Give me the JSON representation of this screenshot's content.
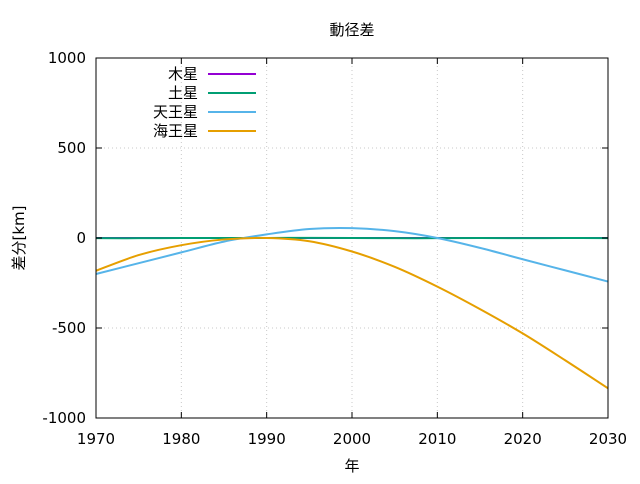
{
  "chart_data": {
    "type": "line",
    "title": "動径差",
    "xlabel": "年",
    "ylabel": "差分[km]",
    "xlim": [
      1970,
      2030
    ],
    "ylim": [
      -1000,
      1000
    ],
    "x_ticks": [
      "1970",
      "1980",
      "1990",
      "2000",
      "2010",
      "2020",
      "2030"
    ],
    "y_ticks": [
      "1000",
      "500",
      "0",
      "-500",
      "-1000"
    ],
    "grid": true,
    "legend_position": "top-left",
    "x": [
      1970,
      1975,
      1980,
      1985,
      1990,
      1995,
      2000,
      2005,
      2010,
      2015,
      2020,
      2025,
      2030
    ],
    "series": [
      {
        "name": "木星",
        "color": "#9400d3",
        "values": [
          0,
          0,
          0,
          0,
          0,
          0,
          0,
          0,
          0,
          0,
          0,
          0,
          0
        ]
      },
      {
        "name": "土星",
        "color": "#009e73",
        "values": [
          -1,
          -1,
          0,
          0,
          0,
          1,
          0,
          -1,
          -1,
          0,
          -1,
          0,
          -1
        ]
      },
      {
        "name": "天王星",
        "color": "#56b4e9",
        "values": [
          -200,
          -140,
          -80,
          -20,
          20,
          50,
          55,
          38,
          0,
          -55,
          -118,
          -180,
          -242
        ]
      },
      {
        "name": "海王星",
        "color": "#e69f00",
        "values": [
          -182,
          -95,
          -40,
          -8,
          0,
          -18,
          -75,
          -160,
          -270,
          -395,
          -530,
          -680,
          -835
        ]
      }
    ]
  }
}
